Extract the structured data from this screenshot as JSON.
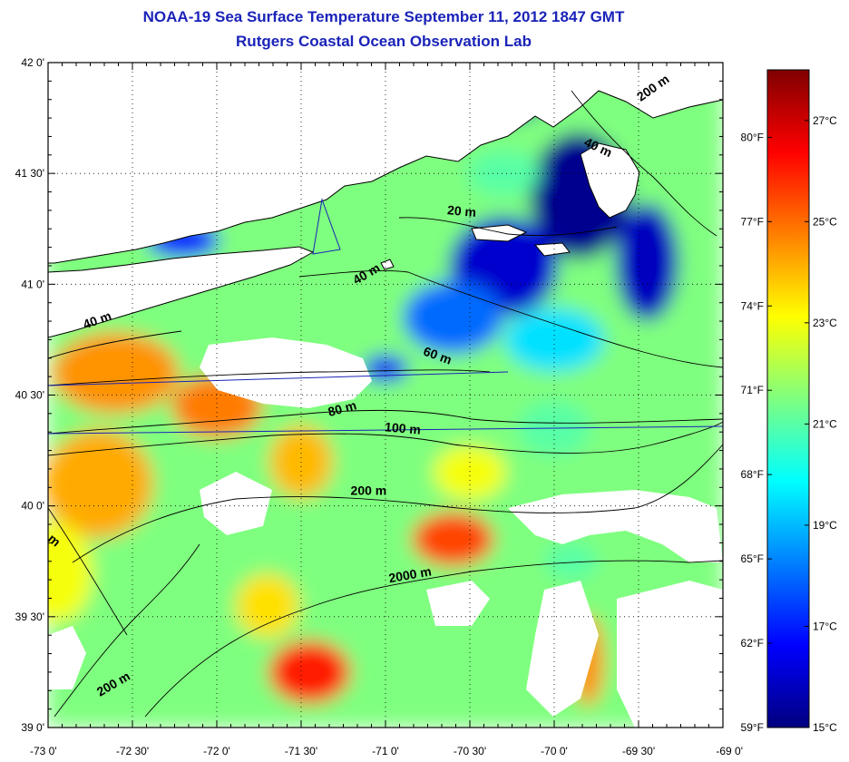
{
  "title_line1": "NOAA-19 Sea Surface Temperature September 11, 2012 1847 GMT",
  "title_line2": "Rutgers Coastal Ocean Observation Lab",
  "lat_ticks": [
    {
      "v": 42.0,
      "label": "42 0'"
    },
    {
      "v": 41.5,
      "label": "41 30'"
    },
    {
      "v": 41.0,
      "label": "41 0'"
    },
    {
      "v": 40.5,
      "label": "40 30'"
    },
    {
      "v": 40.0,
      "label": "40 0'"
    },
    {
      "v": 39.5,
      "label": "39 30'"
    },
    {
      "v": 39.0,
      "label": "39 0'"
    }
  ],
  "lon_ticks": [
    {
      "v": -73.0,
      "label": "-73 0'"
    },
    {
      "v": -72.5,
      "label": "-72 30'"
    },
    {
      "v": -72.0,
      "label": "-72 0'"
    },
    {
      "v": -71.5,
      "label": "-71 30'"
    },
    {
      "v": -71.0,
      "label": "-71 0'"
    },
    {
      "v": -70.5,
      "label": "-70 30'"
    },
    {
      "v": -70.0,
      "label": "-70 0'"
    },
    {
      "v": -69.5,
      "label": "-69 30'"
    },
    {
      "v": -69.0,
      "label": "-69 0'"
    }
  ],
  "colorbar": {
    "celsius_min": 15,
    "celsius_max": 28,
    "celsius_labels": [
      {
        "v": 27,
        "label": "27°C"
      },
      {
        "v": 25,
        "label": "25°C"
      },
      {
        "v": 23,
        "label": "23°C"
      },
      {
        "v": 21,
        "label": "21°C"
      },
      {
        "v": 19,
        "label": "19°C"
      },
      {
        "v": 17,
        "label": "17°C"
      },
      {
        "v": 15,
        "label": "15°C"
      }
    ],
    "fahrenheit_labels": [
      {
        "v": 80,
        "label": "80°F"
      },
      {
        "v": 77,
        "label": "77°F"
      },
      {
        "v": 74,
        "label": "74°F"
      },
      {
        "v": 71,
        "label": "71°F"
      },
      {
        "v": 68,
        "label": "68°F"
      },
      {
        "v": 65,
        "label": "65°F"
      },
      {
        "v": 62,
        "label": "62°F"
      },
      {
        "v": 59,
        "label": "59°F"
      }
    ],
    "stops": [
      "#00007f",
      "#0000ff",
      "#007fff",
      "#00ffff",
      "#7fff7f",
      "#ffff00",
      "#ff7f00",
      "#ff0000",
      "#7f0000"
    ]
  },
  "depth_labels": [
    {
      "text": "200 m",
      "lon": -69.4,
      "lat": 41.87,
      "angle": -35
    },
    {
      "text": "40 m",
      "lon": -69.75,
      "lat": 41.6,
      "angle": 25
    },
    {
      "text": "20 m",
      "lon": -70.55,
      "lat": 41.31,
      "angle": 5
    },
    {
      "text": "40 m",
      "lon": -71.1,
      "lat": 41.03,
      "angle": -30
    },
    {
      "text": "40 m",
      "lon": -72.7,
      "lat": 40.82,
      "angle": -20
    },
    {
      "text": "60 m",
      "lon": -70.7,
      "lat": 40.66,
      "angle": 20
    },
    {
      "text": "80 m",
      "lon": -71.25,
      "lat": 40.42,
      "angle": -15
    },
    {
      "text": "100 m",
      "lon": -70.9,
      "lat": 40.33,
      "angle": 5
    },
    {
      "text": "200 m",
      "lon": -71.1,
      "lat": 40.05,
      "angle": 0
    },
    {
      "text": "2000 m",
      "lon": -70.85,
      "lat": 39.67,
      "angle": -10
    },
    {
      "text": "200 m",
      "lon": -72.6,
      "lat": 39.18,
      "angle": -30
    },
    {
      "text": "m",
      "lon": -72.98,
      "lat": 39.83,
      "angle": 40
    }
  ],
  "patches": [
    {
      "lon": -70.28,
      "lat": 41.9,
      "t": 15.5,
      "rx": 50,
      "ry": 40
    },
    {
      "lon": -69.85,
      "lat": 41.4,
      "t": 15.2,
      "rx": 55,
      "ry": 70
    },
    {
      "lon": -70.3,
      "lat": 41.08,
      "t": 16.0,
      "rx": 60,
      "ry": 55
    },
    {
      "lon": -69.45,
      "lat": 41.1,
      "t": 15.8,
      "rx": 35,
      "ry": 65
    },
    {
      "lon": -70.6,
      "lat": 40.85,
      "t": 18.0,
      "rx": 55,
      "ry": 40
    },
    {
      "lon": -70.0,
      "lat": 40.75,
      "t": 19.5,
      "rx": 55,
      "ry": 35
    },
    {
      "lon": -70.3,
      "lat": 41.5,
      "t": 21.0,
      "rx": 40,
      "ry": 25
    },
    {
      "lon": -71.4,
      "lat": 41.45,
      "t": 21.5,
      "rx": 45,
      "ry": 20
    },
    {
      "lon": -72.2,
      "lat": 41.2,
      "t": 17.0,
      "rx": 40,
      "ry": 20
    },
    {
      "lon": -72.6,
      "lat": 40.6,
      "t": 24.5,
      "rx": 70,
      "ry": 45
    },
    {
      "lon": -72.7,
      "lat": 40.1,
      "t": 24.2,
      "rx": 60,
      "ry": 60
    },
    {
      "lon": -72.95,
      "lat": 39.7,
      "t": 23.0,
      "rx": 40,
      "ry": 55
    },
    {
      "lon": -72.0,
      "lat": 40.45,
      "t": 24.8,
      "rx": 50,
      "ry": 35
    },
    {
      "lon": -71.5,
      "lat": 40.2,
      "t": 24.0,
      "rx": 35,
      "ry": 40
    },
    {
      "lon": -71.45,
      "lat": 39.25,
      "t": 26.0,
      "rx": 45,
      "ry": 35
    },
    {
      "lon": -71.7,
      "lat": 39.55,
      "t": 23.5,
      "rx": 35,
      "ry": 35
    },
    {
      "lon": -70.6,
      "lat": 39.85,
      "t": 25.5,
      "rx": 45,
      "ry": 30
    },
    {
      "lon": -70.5,
      "lat": 40.15,
      "t": 23.0,
      "rx": 40,
      "ry": 30
    },
    {
      "lon": -70.0,
      "lat": 40.35,
      "t": 21.0,
      "rx": 40,
      "ry": 30
    },
    {
      "lon": -69.8,
      "lat": 39.3,
      "t": 24.5,
      "rx": 18,
      "ry": 50
    },
    {
      "lon": -69.9,
      "lat": 39.75,
      "t": 21.0,
      "rx": 30,
      "ry": 20
    },
    {
      "lon": -71.0,
      "lat": 40.62,
      "t": 16.5,
      "rx": 25,
      "ry": 15
    }
  ]
}
